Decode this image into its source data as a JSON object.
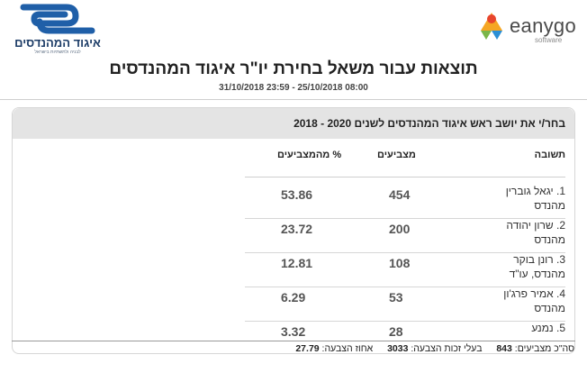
{
  "header": {
    "left_logo": {
      "name": "איגוד המהנדסים",
      "tagline": "לבניה ולתשתיות בישראל",
      "color": "#1b3b66"
    },
    "right_logo": {
      "name": "eanygo",
      "sub": "software",
      "colors": [
        "#e8452c",
        "#f5a623",
        "#7ab648",
        "#2a8fd6"
      ]
    }
  },
  "title": "תוצאות עבור משאל בחירת יו\"ר איגוד המהנדסים",
  "date_range": "31/10/2018 23:59 - 25/10/2018 08:00",
  "question": "בחר/י את יושב ראש איגוד המהנדסים לשנים 2020 - 2018",
  "columns": {
    "answer": "תשובה",
    "votes": "מצביעים",
    "percent": "% מהמצביעים"
  },
  "rows": [
    {
      "answer_line1": "1. יגאל גוברין",
      "answer_line2": "מהנדס",
      "votes": "454",
      "percent": "53.86"
    },
    {
      "answer_line1": "2. שרון יהודה",
      "answer_line2": "מהנדס",
      "votes": "200",
      "percent": "23.72"
    },
    {
      "answer_line1": "3. רונן בוקר",
      "answer_line2": "מהנדס, עו\"ד",
      "votes": "108",
      "percent": "12.81"
    },
    {
      "answer_line1": "4. אמיר פרג'ון",
      "answer_line2": "מהנדס",
      "votes": "53",
      "percent": "6.29"
    },
    {
      "answer_line1": "5. נמנע",
      "answer_line2": "",
      "votes": "28",
      "percent": "3.32"
    }
  ],
  "footer": {
    "total_voters_label": "סה\"כ מצביעים:",
    "total_voters_value": "843",
    "eligible_label": "בעלי זכות הצבעה:",
    "eligible_value": "3033",
    "turnout_label": "אחוז הצבעה:",
    "turnout_value": "27.79"
  }
}
